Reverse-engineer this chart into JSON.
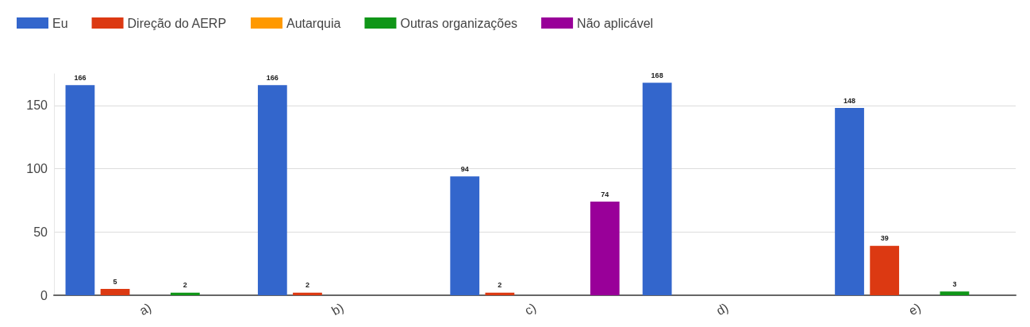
{
  "chart_data": {
    "type": "bar",
    "categories": [
      "a)",
      "b)",
      "c)",
      "d)",
      "e)"
    ],
    "series": [
      {
        "name": "Eu",
        "color": "#3366cc",
        "values": [
          166,
          166,
          94,
          168,
          148
        ],
        "value_labels": [
          "166",
          "166",
          "94",
          "168",
          "148"
        ]
      },
      {
        "name": "Direção do AERP",
        "color": "#dc3912",
        "values": [
          5,
          2,
          2,
          0,
          39
        ],
        "value_labels": [
          "5",
          "2",
          "2",
          null,
          "39"
        ]
      },
      {
        "name": "Autarquia",
        "color": "#ff9900",
        "values": [
          0,
          0,
          0,
          0,
          0
        ],
        "value_labels": [
          null,
          null,
          null,
          null,
          null
        ]
      },
      {
        "name": "Outras organizações",
        "color": "#109618",
        "values": [
          2,
          0,
          0,
          0,
          3
        ],
        "value_labels": [
          "2",
          null,
          null,
          null,
          "3"
        ]
      },
      {
        "name": "Não aplicável",
        "color": "#990099",
        "values": [
          0,
          0,
          74,
          0,
          0
        ],
        "value_labels": [
          null,
          null,
          "74",
          null,
          null
        ]
      }
    ],
    "ylim": [
      0,
      175
    ],
    "yticks": [
      0,
      50,
      100,
      150
    ],
    "grid": "y",
    "legend": "top left"
  }
}
